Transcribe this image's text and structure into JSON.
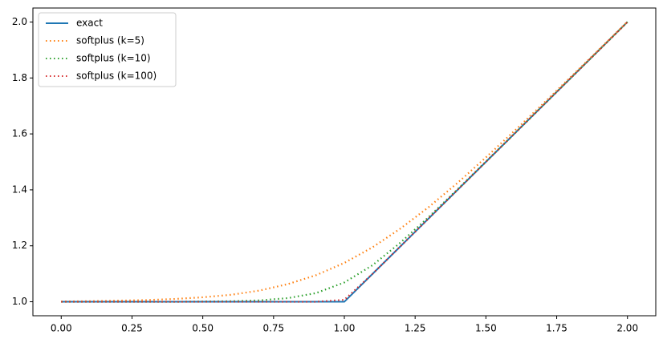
{
  "chart_data": {
    "type": "line",
    "x": [
      0,
      0.1,
      0.2,
      0.3,
      0.4,
      0.5,
      0.6,
      0.7,
      0.8,
      0.9,
      1.0,
      1.1,
      1.2,
      1.3,
      1.4,
      1.5,
      1.6,
      1.7,
      1.8,
      1.9,
      2.0
    ],
    "series": [
      {
        "name": "exact",
        "color": "#1f77b4",
        "linestyle": "solid",
        "values": [
          1,
          1,
          1,
          1,
          1,
          1,
          1,
          1,
          1,
          1,
          1,
          1.1,
          1.2,
          1.3,
          1.4,
          1.5,
          1.6,
          1.7,
          1.8,
          1.9,
          2.0
        ]
      },
      {
        "name": "softplus (k=5)",
        "color": "#ff7f0e",
        "linestyle": "dotted",
        "values": [
          1.001,
          1.002,
          1.004,
          1.006,
          1.01,
          1.016,
          1.025,
          1.04,
          1.063,
          1.095,
          1.139,
          1.195,
          1.263,
          1.34,
          1.425,
          1.516,
          1.61,
          1.706,
          1.804,
          1.902,
          2.001
        ]
      },
      {
        "name": "softplus (k=10)",
        "color": "#2ca02c",
        "linestyle": "dotted",
        "values": [
          1.0,
          1.0,
          1.0,
          1.0,
          1.0,
          1.001,
          1.002,
          1.005,
          1.013,
          1.031,
          1.069,
          1.131,
          1.213,
          1.305,
          1.402,
          1.501,
          1.6,
          1.7,
          1.8,
          1.9,
          2.0
        ]
      },
      {
        "name": "softplus (k=100)",
        "color": "#d62728",
        "linestyle": "dotted",
        "values": [
          1,
          1,
          1,
          1,
          1,
          1,
          1,
          1,
          1,
          1,
          1.007,
          1.1,
          1.2,
          1.3,
          1.4,
          1.5,
          1.6,
          1.7,
          1.8,
          1.9,
          2.0
        ]
      }
    ],
    "xlim": [
      -0.1,
      2.1
    ],
    "ylim": [
      0.95,
      2.05
    ],
    "xticks": [
      {
        "value": 0,
        "label": "0.00"
      },
      {
        "value": 0.25,
        "label": "0.25"
      },
      {
        "value": 0.5,
        "label": "0.50"
      },
      {
        "value": 0.75,
        "label": "0.75"
      },
      {
        "value": 1,
        "label": "1.00"
      },
      {
        "value": 1.25,
        "label": "1.25"
      },
      {
        "value": 1.5,
        "label": "1.50"
      },
      {
        "value": 1.75,
        "label": "1.75"
      },
      {
        "value": 2,
        "label": "2.00"
      }
    ],
    "yticks": [
      {
        "value": 1,
        "label": "1.0"
      },
      {
        "value": 1.2,
        "label": "1.2"
      },
      {
        "value": 1.4,
        "label": "1.4"
      },
      {
        "value": 1.6,
        "label": "1.6"
      },
      {
        "value": 1.8,
        "label": "1.8"
      },
      {
        "value": 2,
        "label": "2.0"
      }
    ],
    "legend": "upper left"
  }
}
